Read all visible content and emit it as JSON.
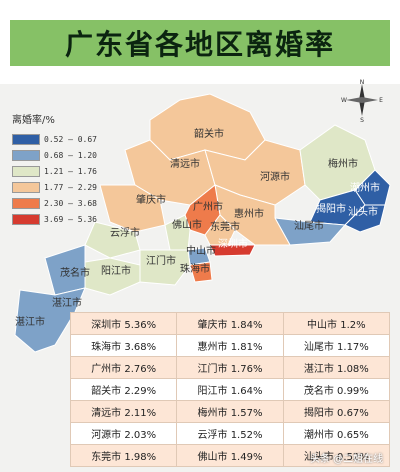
{
  "title": "广东省各地区离婚率",
  "legend": {
    "title": "离婚率/%",
    "items": [
      {
        "label": "0.52 – 0.67",
        "color": "#2f5fa5"
      },
      {
        "label": "0.68 – 1.20",
        "color": "#7ea2c8"
      },
      {
        "label": "1.21 – 1.76",
        "color": "#dfe7c7"
      },
      {
        "label": "1.77 – 2.29",
        "color": "#f4c79a"
      },
      {
        "label": "2.30 – 3.68",
        "color": "#ee7b4b"
      },
      {
        "label": "3.69 – 5.36",
        "color": "#d63b2f"
      }
    ]
  },
  "compass": {
    "n": "N",
    "s": "S",
    "e": "E",
    "w": "W"
  },
  "map_labels": {
    "shaoguan": "韶关市",
    "qingyuan": "清远市",
    "heyuan": "河源市",
    "meizhou": "梅州市",
    "chaozhou": "潮州市",
    "zhaoqing": "肇庆市",
    "guangzhou": "广州市",
    "huizhou": "惠州市",
    "jieyang": "揭阳市",
    "shantou": "汕头市",
    "foshan": "佛山市",
    "dongguan": "东莞市",
    "shanwei": "汕尾市",
    "yunfu": "云浮市",
    "zhongshan": "中山市",
    "shenzhen": "深圳市",
    "jiangmen": "江门市",
    "zhuhai": "珠海市",
    "maoming": "茂名市",
    "yangjiang": "阳江市",
    "zhanjiang_a": "湛江市",
    "zhanjiang_b": "湛江市"
  },
  "table": {
    "rows": [
      [
        "深圳市 5.36%",
        "肇庆市 1.84%",
        "中山市 1.2%"
      ],
      [
        "珠海市 3.68%",
        "惠州市 1.81%",
        "汕尾市 1.17%"
      ],
      [
        "广州市 2.76%",
        "江门市 1.76%",
        "湛江市 1.08%"
      ],
      [
        "韶关市 2.29%",
        "阳江市 1.64%",
        "茂名市 0.99%"
      ],
      [
        "清远市 2.11%",
        "梅州市 1.57%",
        "揭阳市 0.67%"
      ],
      [
        "河源市 2.03%",
        "云浮市 1.52%",
        "潮州市 0.65%"
      ],
      [
        "东莞市 1.98%",
        "佛山市 1.49%",
        "汕头市 0.52%"
      ]
    ]
  },
  "watermark": "头条 @二姐在线"
}
